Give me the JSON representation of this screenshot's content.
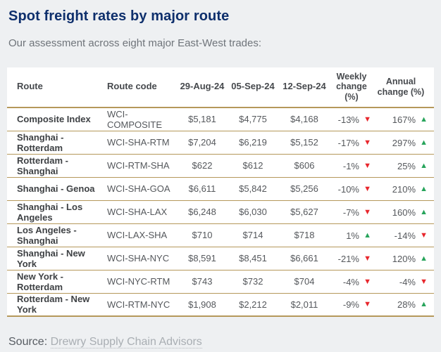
{
  "page": {
    "title": "Spot freight rates by major route",
    "subtitle": "Our assessment across eight major East-West trades:",
    "source_label": "Source:",
    "source_link_text": "Drewry Supply Chain Advisors"
  },
  "colors": {
    "title_navy": "#0e2f6c",
    "gold_border": "#b5985a",
    "up_green": "#27a45b",
    "down_red": "#e8262c",
    "page_background": "#eef0f2",
    "table_background": "#ffffff"
  },
  "icons": {
    "up": "up-triangle-icon",
    "down": "down-triangle-icon"
  },
  "chart_data": {
    "type": "table",
    "title": "Spot freight rates by major route",
    "columns": [
      "Route",
      "Route code",
      "29-Aug-24",
      "05-Sep-24",
      "12-Sep-24",
      "Weekly change (%)",
      "Annual change (%)"
    ],
    "rows": [
      {
        "route": "Composite Index",
        "code": "WCI-COMPOSITE",
        "prices": [
          "$5,181",
          "$4,775",
          "$4,168"
        ],
        "weekly": {
          "value": "-13%",
          "direction": "down"
        },
        "annual": {
          "value": "167%",
          "direction": "up"
        }
      },
      {
        "route": "Shanghai - Rotterdam",
        "code": "WCI-SHA-RTM",
        "prices": [
          "$7,204",
          "$6,219",
          "$5,152"
        ],
        "weekly": {
          "value": "-17%",
          "direction": "down"
        },
        "annual": {
          "value": "297%",
          "direction": "up"
        }
      },
      {
        "route": "Rotterdam - Shanghai",
        "code": "WCI-RTM-SHA",
        "prices": [
          "$622",
          "$612",
          "$606"
        ],
        "weekly": {
          "value": "-1%",
          "direction": "down"
        },
        "annual": {
          "value": "25%",
          "direction": "up"
        }
      },
      {
        "route": "Shanghai - Genoa",
        "code": "WCI-SHA-GOA",
        "prices": [
          "$6,611",
          "$5,842",
          "$5,256"
        ],
        "weekly": {
          "value": "-10%",
          "direction": "down"
        },
        "annual": {
          "value": "210%",
          "direction": "up"
        }
      },
      {
        "route": "Shanghai - Los Angeles",
        "code": "WCI-SHA-LAX",
        "prices": [
          "$6,248",
          "$6,030",
          "$5,627"
        ],
        "weekly": {
          "value": "-7%",
          "direction": "down"
        },
        "annual": {
          "value": "160%",
          "direction": "up"
        }
      },
      {
        "route": "Los Angeles - Shanghai",
        "code": "WCI-LAX-SHA",
        "prices": [
          "$710",
          "$714",
          "$718"
        ],
        "weekly": {
          "value": "1%",
          "direction": "up"
        },
        "annual": {
          "value": "-14%",
          "direction": "down"
        }
      },
      {
        "route": "Shanghai - New York",
        "code": "WCI-SHA-NYC",
        "prices": [
          "$8,591",
          "$8,451",
          "$6,661"
        ],
        "weekly": {
          "value": "-21%",
          "direction": "down"
        },
        "annual": {
          "value": "120%",
          "direction": "up"
        }
      },
      {
        "route": "New York - Rotterdam",
        "code": "WCI-NYC-RTM",
        "prices": [
          "$743",
          "$732",
          "$704"
        ],
        "weekly": {
          "value": "-4%",
          "direction": "down"
        },
        "annual": {
          "value": "-4%",
          "direction": "down"
        }
      },
      {
        "route": "Rotterdam - New York",
        "code": "WCI-RTM-NYC",
        "prices": [
          "$1,908",
          "$2,212",
          "$2,011"
        ],
        "weekly": {
          "value": "-9%",
          "direction": "down"
        },
        "annual": {
          "value": "28%",
          "direction": "up"
        }
      }
    ]
  }
}
